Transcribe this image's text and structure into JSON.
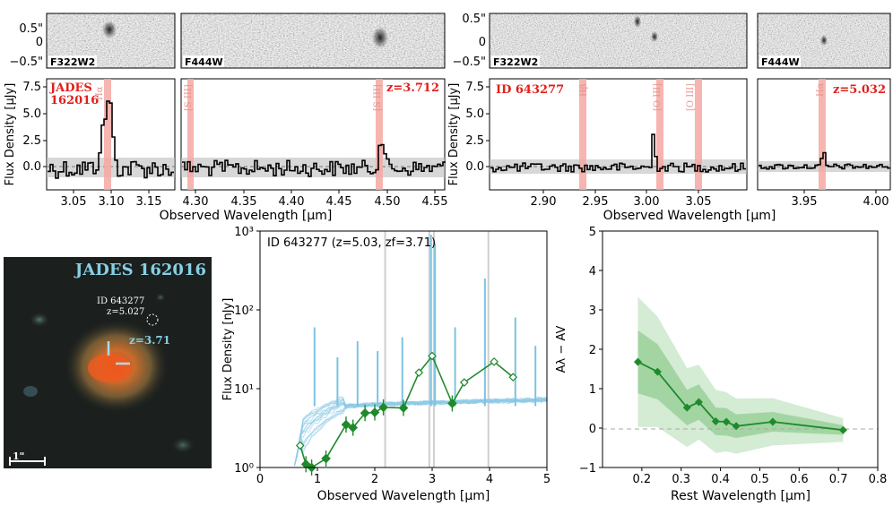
{
  "spectra_top": {
    "cutout_ticks": [
      "0.5\"",
      "0",
      "−0.5\""
    ],
    "left": {
      "filter_a": "F322W2",
      "filter_b": "F444W",
      "ylabel": "Flux Density [μJy]",
      "xlabel": "Observed Wavelength [μm]",
      "yticks": [
        "7.5",
        "5.0",
        "2.5",
        "0.0"
      ],
      "xticks_a": [
        "3.05",
        "3.10",
        "3.15"
      ],
      "xticks_b": [
        "4.30",
        "4.35",
        "4.40",
        "4.45",
        "4.50",
        "4.55"
      ],
      "name_line1": "JADES",
      "name_line2": "162016",
      "z_label": "z=3.712",
      "line_labels": [
        "Hα",
        "[S III]",
        "[S III]"
      ]
    },
    "right": {
      "filter_a": "F322W2",
      "filter_b": "F444W",
      "ylabel": "Flux Density [μJy]",
      "xlabel": "Observed Wavelength [μm]",
      "yticks": [
        "7.5",
        "5.0",
        "2.5",
        "0.0"
      ],
      "xticks_a": [
        "2.90",
        "2.95",
        "3.00",
        "3.05"
      ],
      "xticks_b": [
        "3.95",
        "4.00"
      ],
      "name_label": "ID 643277",
      "z_label": "z=5.032",
      "line_labels": [
        "Hβ",
        "[O III]",
        "[O III]",
        "Hα"
      ]
    }
  },
  "cutout": {
    "title": "JADES 162016",
    "id_line1": "ID 643277",
    "id_line2": "z=5.027",
    "z_label": "z=3.71",
    "scale_label": "1\""
  },
  "chart_data": [
    {
      "type": "line",
      "title": "ID 643277 (z=5.03, zf=3.71)",
      "xlabel": "Observed Wavelength [μm]",
      "ylabel": "Flux Density [nJy]",
      "xlim": [
        0,
        5
      ],
      "ylim": [
        1,
        1000
      ],
      "yscale": "log",
      "xticks": [
        "0",
        "1",
        "2",
        "3",
        "4",
        "5"
      ],
      "yticks": [
        "10⁰",
        "10¹",
        "10²",
        "10³"
      ],
      "series": [
        {
          "marker": "filled-diamond",
          "x": [
            0.8,
            0.9,
            1.15,
            1.5,
            1.62,
            1.83,
            2.0,
            2.15,
            2.5,
            3.35
          ],
          "values": [
            1.1,
            1.0,
            1.3,
            3.5,
            3.2,
            4.9,
            5.0,
            5.8,
            5.7,
            6.5
          ]
        },
        {
          "marker": "open-diamond",
          "x": [
            0.7,
            2.77,
            3.0,
            3.56,
            4.08,
            4.41
          ],
          "values": [
            1.9,
            16,
            26,
            12,
            22,
            14
          ]
        }
      ]
    },
    {
      "type": "line",
      "xlabel": "Rest Wavelength [μm]",
      "ylabel": "Aλ − AV",
      "xlim": [
        0.1,
        0.8
      ],
      "ylim": [
        -1,
        5
      ],
      "xticks": [
        "0.2",
        "0.3",
        "0.4",
        "0.5",
        "0.6",
        "0.7",
        "0.8"
      ],
      "yticks": [
        "−1",
        "0",
        "1",
        "2",
        "3",
        "4",
        "5"
      ],
      "x": [
        0.19,
        0.24,
        0.315,
        0.345,
        0.388,
        0.415,
        0.44,
        0.533,
        0.712
      ],
      "values": [
        1.68,
        1.43,
        0.52,
        0.66,
        0.17,
        0.16,
        0.05,
        0.16,
        -0.05
      ]
    }
  ]
}
